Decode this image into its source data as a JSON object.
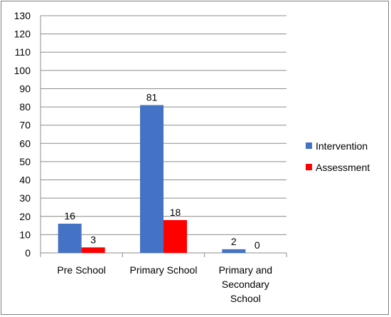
{
  "chart_data": {
    "type": "bar",
    "categories": [
      [
        "Pre School"
      ],
      [
        "Primary School"
      ],
      [
        "Primary and",
        "Secondary",
        "School"
      ]
    ],
    "series": [
      {
        "name": "Intervention",
        "values": [
          16,
          81,
          2
        ],
        "color": "#4472C4"
      },
      {
        "name": "Assessment",
        "values": [
          3,
          18,
          0
        ],
        "color": "#FF0000"
      }
    ],
    "ylim": [
      0,
      130
    ],
    "ytick_step": 10,
    "grid": true,
    "legend_position": "right"
  }
}
